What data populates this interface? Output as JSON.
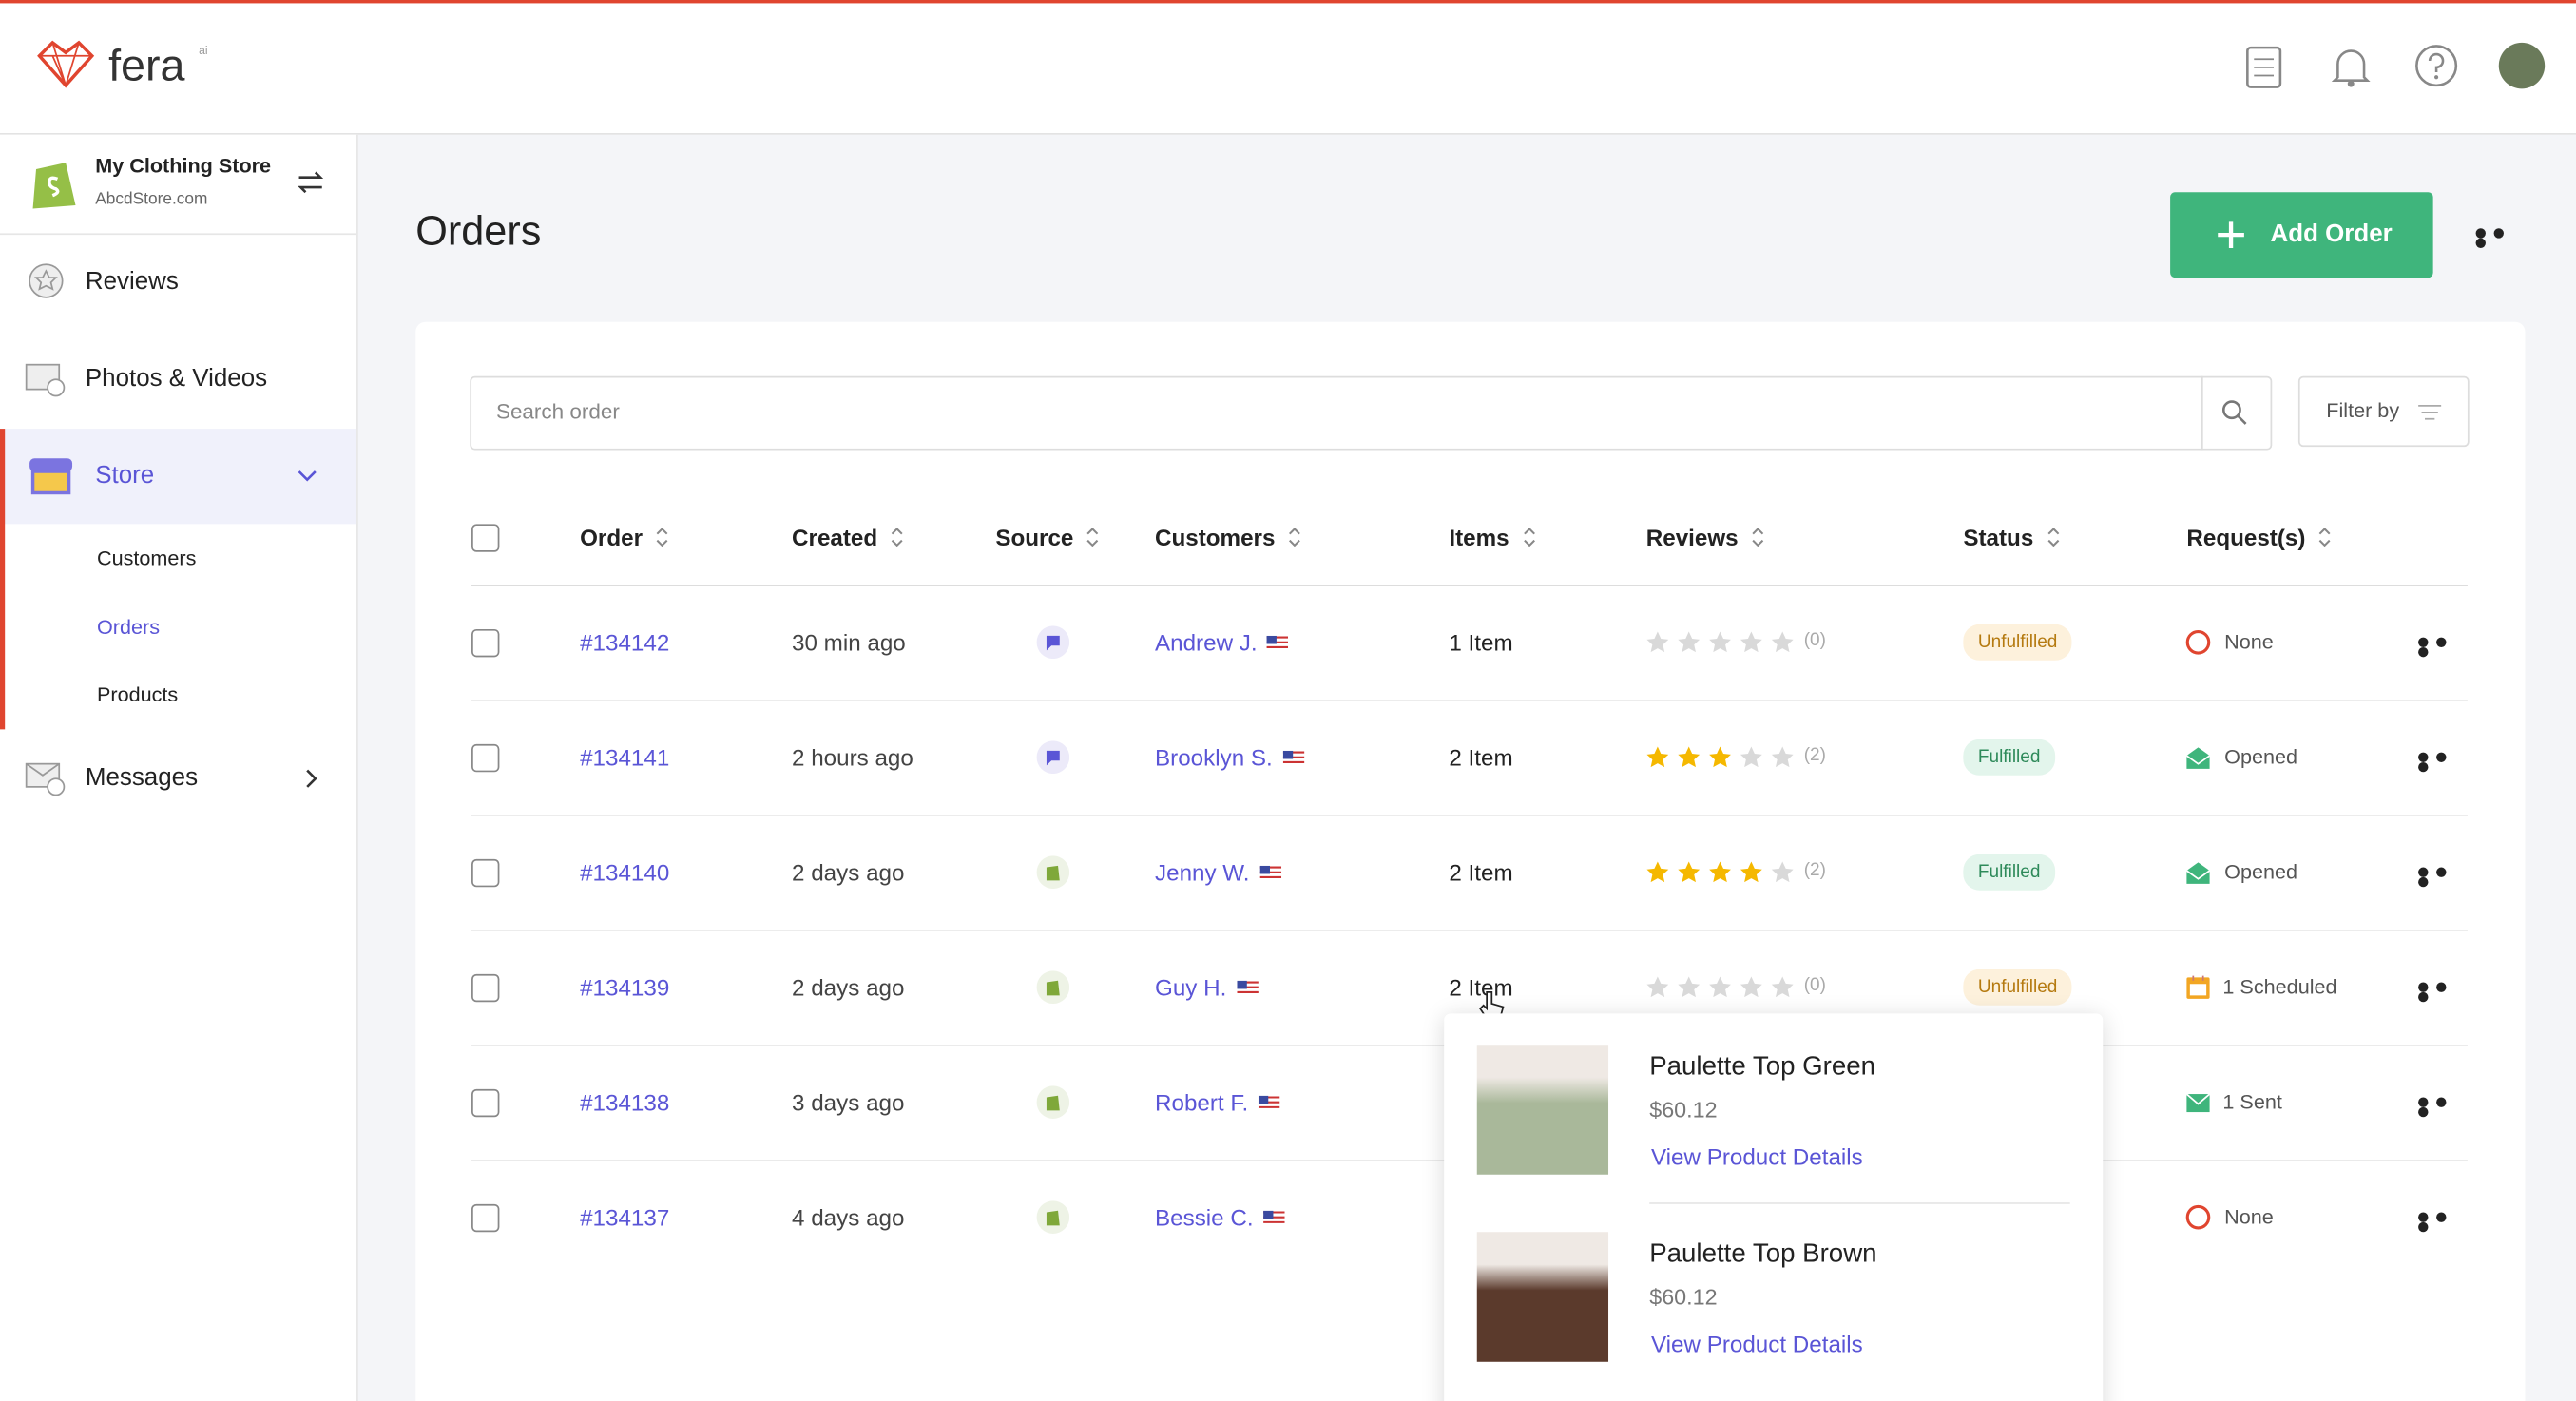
{
  "header": {
    "logo": "fera",
    "logo_sup": "ai"
  },
  "store": {
    "name": "My Clothing Store",
    "domain": "AbcdStore.com"
  },
  "nav": {
    "reviews": "Reviews",
    "photos": "Photos & Videos",
    "store": "Store",
    "store_sub": [
      "Customers",
      "Orders",
      "Products"
    ],
    "messages": "Messages"
  },
  "page": {
    "title": "Orders",
    "add_button": "Add Order",
    "search_placeholder": "Search order",
    "filter": "Filter by"
  },
  "columns": [
    "Order",
    "Created",
    "Source",
    "Customers",
    "Items",
    "Reviews",
    "Status",
    "Request(s)"
  ],
  "rows": [
    {
      "order": "#134142",
      "created": "30 min ago",
      "source": "chat",
      "customer": "Andrew J.",
      "items": "1 Item",
      "rating": 0,
      "review_count": "(0)",
      "status": "Unfulfilled",
      "request": "None",
      "request_icon": "none"
    },
    {
      "order": "#134141",
      "created": "2 hours ago",
      "source": "chat",
      "customer": "Brooklyn S.",
      "items": "2 Item",
      "rating": 3,
      "review_count": "(2)",
      "status": "Fulfilled",
      "request": "Opened",
      "request_icon": "opened"
    },
    {
      "order": "#134140",
      "created": "2 days ago",
      "source": "shopify",
      "customer": "Jenny W.",
      "items": "2 Item",
      "rating": 4,
      "review_count": "(2)",
      "status": "Fulfilled",
      "request": "Opened",
      "request_icon": "opened"
    },
    {
      "order": "#134139",
      "created": "2 days ago",
      "source": "shopify",
      "customer": "Guy H.",
      "items": "2 Item",
      "rating": 0,
      "review_count": "(0)",
      "status": "Unfulfilled",
      "request": "1 Scheduled",
      "request_icon": "scheduled"
    },
    {
      "order": "#134138",
      "created": "3 days ago",
      "source": "shopify",
      "customer": "Robert F.",
      "request": "1 Sent",
      "request_icon": "sent"
    },
    {
      "order": "#134137",
      "created": "4 days ago",
      "source": "shopify",
      "customer": "Bessie C.",
      "request": "None",
      "request_icon": "none"
    }
  ],
  "popover": {
    "products": [
      {
        "name": "Paulette Top Green",
        "price": "$60.12",
        "link": "View Product Details",
        "color": "#a9b89a"
      },
      {
        "name": "Paulette Top Brown",
        "price": "$60.12",
        "link": "View Product Details",
        "color": "#5b3a2c"
      }
    ]
  }
}
